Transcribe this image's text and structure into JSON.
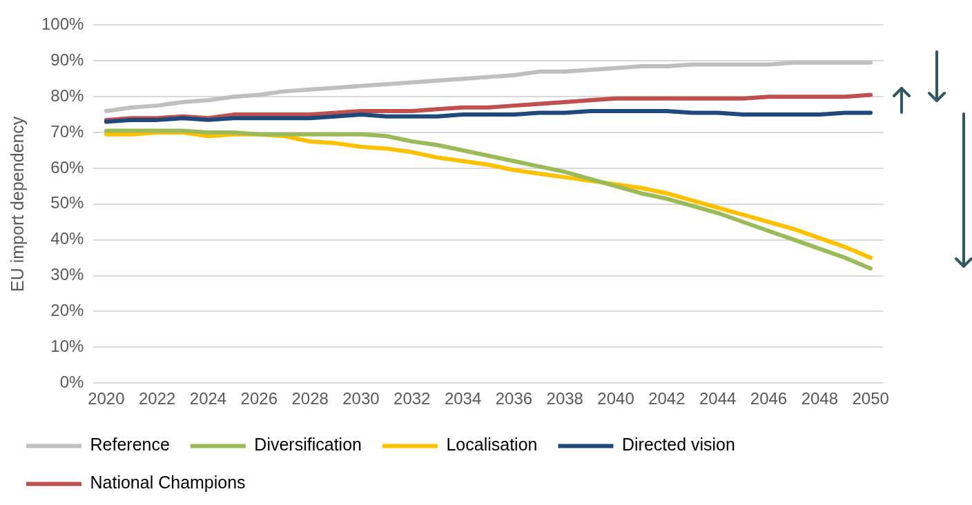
{
  "chart_data": {
    "type": "line",
    "ylabel": "EU import dependency",
    "categories": [
      "2020",
      null,
      "2022",
      null,
      "2024",
      null,
      "2026",
      null,
      "2028",
      null,
      "2030",
      null,
      "2032",
      null,
      "2034",
      null,
      "2036",
      null,
      "2038",
      null,
      "2040",
      null,
      "2042",
      null,
      "2044",
      null,
      "2046",
      null,
      "2048",
      null,
      "2050"
    ],
    "series": [
      {
        "name": "Reference",
        "color": "#bfbfbf",
        "values": [
          76,
          77,
          77.5,
          78.5,
          79,
          80,
          80.5,
          81.5,
          82,
          82.5,
          83,
          83.5,
          84,
          84.5,
          85,
          85.5,
          86,
          87,
          87,
          87.5,
          88,
          88.5,
          88.5,
          89,
          89,
          89,
          89,
          89.5,
          89.5,
          89.5,
          89.5
        ]
      },
      {
        "name": "Diversification",
        "color": "#9bbb59",
        "values": [
          70.5,
          70.5,
          70.5,
          70.5,
          70,
          70,
          69.5,
          69.5,
          69.5,
          69.5,
          69.5,
          69,
          67.5,
          66.5,
          65,
          63.5,
          62,
          60.5,
          59,
          57,
          55,
          53,
          51.5,
          49.5,
          47.5,
          45,
          42.5,
          40,
          37.5,
          35,
          32
        ]
      },
      {
        "name": "Localisation",
        "color": "#ffc000",
        "values": [
          69.5,
          69.5,
          70,
          70,
          69,
          69.5,
          69.5,
          69,
          67.5,
          67,
          66,
          65.5,
          64.5,
          63,
          62,
          61,
          59.5,
          58.5,
          57.5,
          56.5,
          55.5,
          54.5,
          53,
          51,
          49,
          47,
          45,
          43,
          40.5,
          38,
          35
        ]
      },
      {
        "name": "Directed vision",
        "color": "#1f497d",
        "values": [
          73,
          73.5,
          73.5,
          74,
          73.5,
          74,
          74,
          74,
          74,
          74.5,
          75,
          74.5,
          74.5,
          74.5,
          75,
          75,
          75,
          75.5,
          75.5,
          76,
          76,
          76,
          76,
          75.5,
          75.5,
          75,
          75,
          75,
          75,
          75.5,
          75.5
        ]
      },
      {
        "name": "National Champions",
        "color": "#c0504d",
        "values": [
          73.5,
          74,
          74,
          74.5,
          74,
          75,
          75,
          75,
          75,
          75.5,
          76,
          76,
          76,
          76.5,
          77,
          77,
          77.5,
          78,
          78.5,
          79,
          79.5,
          79.5,
          79.5,
          79.5,
          79.5,
          79.5,
          80,
          80,
          80,
          80,
          80.5
        ]
      }
    ],
    "ylim": [
      0,
      100
    ],
    "yticks": [
      {
        "value": 0,
        "label": "0%"
      },
      {
        "value": 10,
        "label": "10%"
      },
      {
        "value": 20,
        "label": "20%"
      },
      {
        "value": 30,
        "label": "30%"
      },
      {
        "value": 40,
        "label": "40%"
      },
      {
        "value": 50,
        "label": "50%"
      },
      {
        "value": 60,
        "label": "60%"
      },
      {
        "value": 70,
        "label": "70%"
      },
      {
        "value": 80,
        "label": "80%"
      },
      {
        "value": 90,
        "label": "90%"
      },
      {
        "value": 100,
        "label": "100%"
      }
    ],
    "grid": "y",
    "legend": "bottom",
    "marker": "none",
    "line_style": "solid"
  }
}
